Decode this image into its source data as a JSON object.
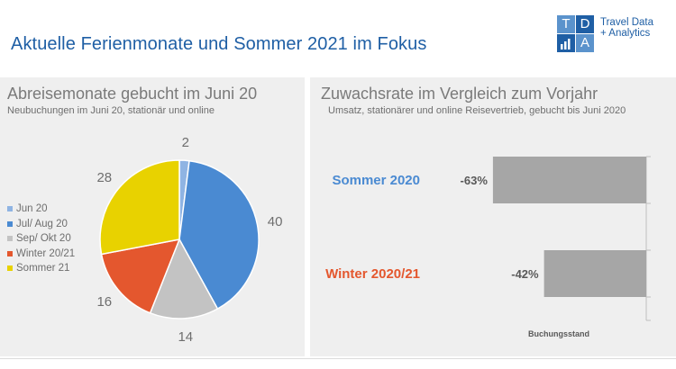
{
  "header": {
    "title": "Aktuelle Ferienmonate und Sommer 2021 im Fokus",
    "logo": {
      "letters": [
        "T",
        "D",
        "",
        "A"
      ],
      "line1": "Travel Data",
      "line2": "+ Analytics",
      "colors": {
        "blue": "#1f5fa5",
        "light": "#5b93cc"
      }
    }
  },
  "chart_data": [
    {
      "type": "pie",
      "title": "Abreisemonate gebucht im Juni 20",
      "subtitle": "Neubuchungen im Juni 20, stationär und online",
      "legend_position": "left",
      "slices": [
        {
          "label": "Jun 20",
          "value": 2,
          "color": "#8fb4e3"
        },
        {
          "label": "Jul/ Aug 20",
          "value": 40,
          "color": "#4a8ad2"
        },
        {
          "label": "Sep/ Okt 20",
          "value": 14,
          "color": "#c3c3c3"
        },
        {
          "label": "Winter 20/21",
          "value": 16,
          "color": "#e4572e"
        },
        {
          "label": "Sommer 21",
          "value": 28,
          "color": "#e8d200"
        }
      ]
    },
    {
      "type": "bar",
      "orientation": "horizontal",
      "title": "Zuwachsrate im Vergleich zum Vorjahr",
      "subtitle": "Umsatz, stationärer und online Reisevertrieb, gebucht bis Juni 2020",
      "xlabel": "Buchungsstand",
      "xlim": [
        -100,
        0
      ],
      "bar_color": "#a6a6a6",
      "categories": [
        "Sommer 2020",
        "Winter 2020/21"
      ],
      "category_colors": [
        "#4a8ad2",
        "#e4572e"
      ],
      "values": [
        -63,
        -42
      ],
      "value_labels": [
        "-63%",
        "-42%"
      ]
    }
  ]
}
